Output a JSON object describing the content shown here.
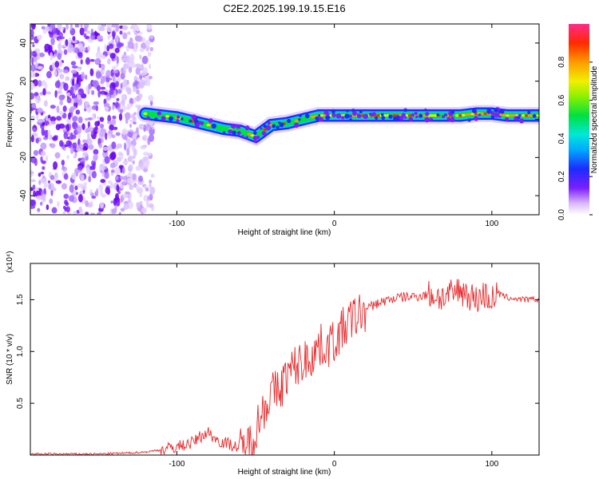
{
  "title": "C2E2.2025.199.19.15.E16",
  "chart_data": [
    {
      "type": "heatmap",
      "xlabel": "Height of straight line (km)",
      "ylabel": "Frequency (Hz)",
      "xlim": [
        -193,
        130
      ],
      "ylim": [
        -50,
        50
      ],
      "xticks": [
        -100,
        0,
        100
      ],
      "yticks": [
        -40,
        -20,
        0,
        20,
        40
      ],
      "colorbar": {
        "label": "Normalized spectral amplitude",
        "range": [
          0,
          1
        ],
        "ticks": [
          "0.0",
          "0.2",
          "0.4",
          "0.6",
          "0.8"
        ]
      },
      "ridge": {
        "x": [
          -120,
          -110,
          -100,
          -90,
          -80,
          -70,
          -60,
          -50,
          -45,
          -40,
          -30,
          -20,
          -15,
          -10,
          0,
          20,
          40,
          60,
          80,
          90,
          100,
          110,
          120,
          130
        ],
        "y": [
          3,
          2,
          1,
          -1,
          -3,
          -5,
          -6,
          -9,
          -6,
          -3,
          -2,
          0,
          1,
          2,
          2,
          2,
          2,
          2,
          2,
          3,
          3,
          2,
          2,
          2
        ]
      },
      "noise_region": {
        "x_from": -193,
        "x_to": -115
      }
    },
    {
      "type": "line",
      "xlabel": "Height of straight line (km)",
      "ylabel": "SNR (10 * v/v)",
      "scale_label": "(x10⁴)",
      "xlim": [
        -193,
        130
      ],
      "ylim": [
        0,
        1.85
      ],
      "xticks": [
        -100,
        0,
        100
      ],
      "yticks": [
        0.5,
        1.0,
        1.5
      ],
      "color": "#e8282a",
      "series": [
        {
          "x": [
            -193,
            -170,
            -150,
            -130,
            -120,
            -110,
            -100,
            -90,
            -85,
            -80,
            -75,
            -70,
            -65,
            -60,
            -55,
            -50,
            -45,
            -40,
            -35,
            -30,
            -25,
            -20,
            -15,
            -10,
            -5,
            0,
            5,
            10,
            15,
            20,
            25,
            30,
            35,
            40,
            50,
            60,
            70,
            75,
            80,
            85,
            90,
            95,
            100,
            105,
            110,
            120,
            130
          ],
          "y": [
            0.01,
            0.01,
            0.01,
            0.02,
            0.03,
            0.05,
            0.08,
            0.12,
            0.18,
            0.22,
            0.15,
            0.12,
            0.1,
            0.06,
            0.08,
            0.25,
            0.45,
            0.6,
            0.62,
            0.78,
            0.85,
            0.9,
            0.95,
            1.05,
            1.05,
            1.1,
            1.2,
            1.3,
            1.35,
            1.4,
            1.45,
            1.48,
            1.5,
            1.52,
            1.53,
            1.55,
            1.52,
            1.55,
            1.6,
            1.55,
            1.5,
            1.55,
            1.5,
            1.55,
            1.52,
            1.5,
            1.5
          ]
        }
      ]
    }
  ]
}
